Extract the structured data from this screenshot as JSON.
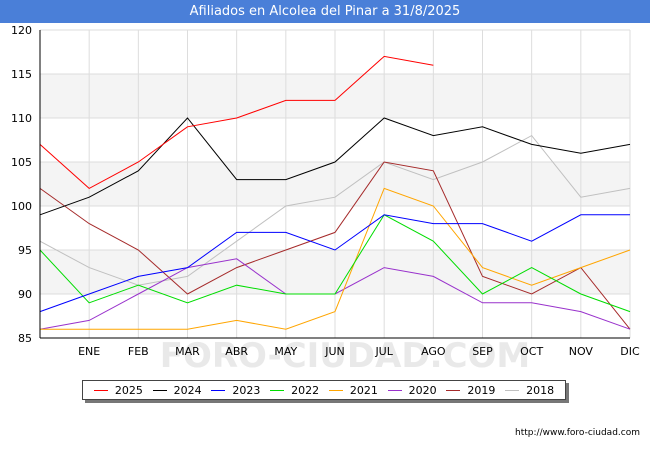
{
  "title": "Afiliados en Alcolea del Pinar a 31/8/2025",
  "source": "http://www.foro-ciudad.com",
  "watermark": "FORO-CIUDAD.COM",
  "chart_data": {
    "type": "line",
    "title": "Afiliados en Alcolea del Pinar a 31/8/2025",
    "categories": [
      "",
      "ENE",
      "FEB",
      "MAR",
      "ABR",
      "MAY",
      "JUN",
      "JUL",
      "AGO",
      "SEP",
      "OCT",
      "NOV",
      "DIC"
    ],
    "ylim": [
      85,
      120
    ],
    "yticks": [
      85,
      90,
      95,
      100,
      105,
      110,
      115,
      120
    ],
    "grid": true,
    "legend_position": "bottom",
    "series": [
      {
        "name": "2025",
        "color": "#ff0000",
        "values": [
          107,
          102,
          105,
          109,
          110,
          112,
          112,
          117,
          116,
          null,
          null,
          null,
          null
        ]
      },
      {
        "name": "2024",
        "color": "#000000",
        "values": [
          99,
          101,
          104,
          110,
          103,
          103,
          105,
          110,
          108,
          109,
          107,
          106,
          107
        ]
      },
      {
        "name": "2023",
        "color": "#0000ff",
        "values": [
          88,
          90,
          92,
          93,
          97,
          97,
          95,
          99,
          98,
          98,
          96,
          99,
          99
        ]
      },
      {
        "name": "2022",
        "color": "#00dd00",
        "values": [
          95,
          89,
          91,
          89,
          91,
          90,
          90,
          99,
          96,
          90,
          93,
          90,
          88
        ]
      },
      {
        "name": "2021",
        "color": "#ffa500",
        "values": [
          86,
          86,
          86,
          86,
          87,
          86,
          88,
          102,
          100,
          93,
          91,
          93,
          95
        ]
      },
      {
        "name": "2020",
        "color": "#9932cc",
        "values": [
          86,
          87,
          90,
          93,
          94,
          90,
          90,
          93,
          92,
          89,
          89,
          88,
          86
        ]
      },
      {
        "name": "2019",
        "color": "#a52a2a",
        "values": [
          102,
          98,
          95,
          90,
          93,
          95,
          97,
          105,
          104,
          92,
          90,
          93,
          86
        ]
      },
      {
        "name": "2018",
        "color": "#c0c0c0",
        "values": [
          96,
          93,
          91,
          92,
          96,
          100,
          101,
          105,
          103,
          105,
          108,
          101,
          102
        ]
      }
    ]
  }
}
